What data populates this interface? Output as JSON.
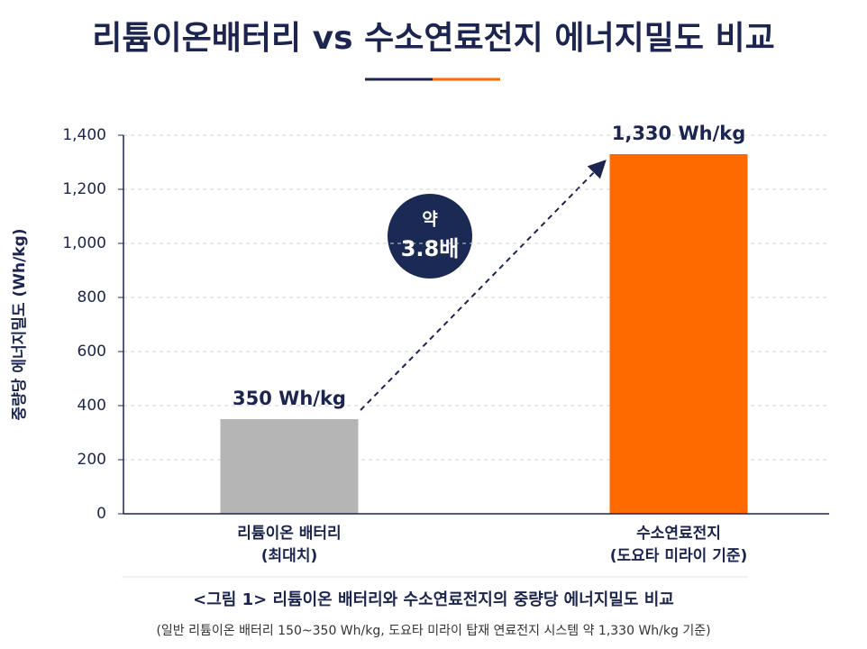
{
  "chart_data": {
    "type": "bar",
    "title": "리튬이온배터리 vs 수소연료전지 에너지밀도 비교",
    "y_label": "중량당 에너지밀도 (Wh/kg)",
    "categories": [
      [
        "리튬이온 배터리",
        "(최대치)"
      ],
      [
        "수소연료전지",
        "(도요타 미라이 기준)"
      ]
    ],
    "values": [
      350,
      1330
    ],
    "value_labels": [
      "350 Wh/kg",
      "1,330 Wh/kg"
    ],
    "colors": [
      "#b5b5b5",
      "#ff6a00"
    ],
    "ylim": [
      0,
      1400
    ],
    "yticks": [
      0,
      200,
      400,
      600,
      800,
      {
        "value": 1000,
        "label": "1,000"
      },
      {
        "value": 1200,
        "label": "1,200"
      },
      {
        "value": 1400,
        "label": "1,400"
      }
    ],
    "grid": true,
    "annotation": [
      "약",
      "3.8배"
    ],
    "caption": "<그림 1> 리튬이온 배터리와 수소연료전지의 중량당 에너지밀도 비교",
    "footnote": "(일반 리튬이온 배터리 150~350 Wh/kg, 도요타 미라이 탑재 연료전지 시스템 약 1,330 Wh/kg 기준)"
  }
}
